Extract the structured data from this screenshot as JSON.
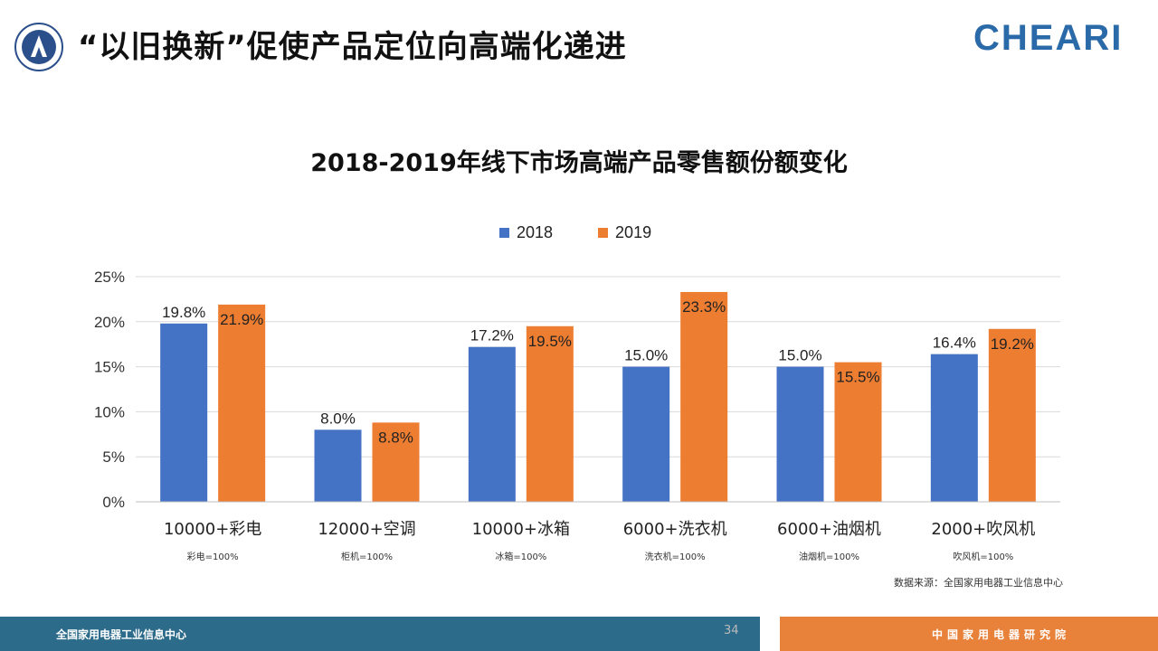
{
  "header": {
    "title": "“以旧换新”促使产品定位向高端化递进",
    "brand": "CHEARI"
  },
  "colors": {
    "2018": "#4472c4",
    "2019": "#ed7d31",
    "brand": "#2a6aa8",
    "footer_left": "#2d6b8a",
    "footer_right": "#e8823a"
  },
  "chart_data": {
    "type": "bar",
    "title": "2018-2019年线下市场高端产品零售额份额变化",
    "categories": [
      "10000+彩电",
      "12000+空调",
      "10000+冰箱",
      "6000+洗衣机",
      "6000+油烟机",
      "2000+吹风机"
    ],
    "category_notes": [
      "彩电=100%",
      "柜机=100%",
      "冰箱=100%",
      "洗衣机=100%",
      "油烟机=100%",
      "吹风机=100%"
    ],
    "series": [
      {
        "name": "2018",
        "values": [
          19.8,
          8.0,
          17.2,
          15.0,
          15.0,
          16.4
        ],
        "labels": [
          "19.8%",
          "8.0%",
          "17.2%",
          "15.0%",
          "15.0%",
          "16.4%"
        ]
      },
      {
        "name": "2019",
        "values": [
          21.9,
          8.8,
          19.5,
          23.3,
          15.5,
          19.2
        ],
        "labels": [
          "21.9%",
          "8.8%",
          "19.5%",
          "23.3%",
          "15.5%",
          "19.2%"
        ]
      }
    ],
    "ylim": [
      0,
      25
    ],
    "yticks": [
      "0%",
      "5%",
      "10%",
      "15%",
      "20%",
      "25%"
    ],
    "grid": true,
    "legend": "top-center"
  },
  "source": "数据来源：全国家用电器工业信息中心",
  "footer": {
    "left_text": "全国家用电器工业信息中心",
    "right_text": "中国家用电器研究院",
    "page_number": "34"
  }
}
